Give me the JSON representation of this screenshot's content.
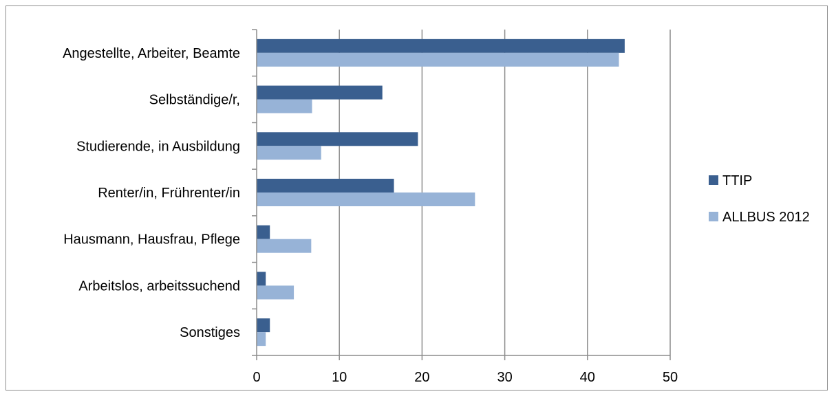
{
  "chart_data": {
    "type": "bar",
    "orientation": "horizontal",
    "title": "",
    "xlabel": "",
    "ylabel": "",
    "categories": [
      "Angestellte, Arbeiter, Beamte",
      "Selbständige/r,",
      "Studierende, in Ausbildung",
      "Renter/in, Frührenter/in",
      "Hausmann, Hausfrau, Pflege",
      "Arbeitslos, arbeitssuchend",
      "Sonstiges"
    ],
    "series": [
      {
        "name": "TTIP",
        "color": "#3a5f8f",
        "values": [
          44.5,
          15.2,
          19.5,
          16.6,
          1.6,
          1.1,
          1.6
        ]
      },
      {
        "name": "ALLBUS 2012",
        "color": "#97b3d7",
        "values": [
          43.8,
          6.7,
          7.8,
          26.4,
          6.6,
          4.5,
          1.1
        ]
      }
    ],
    "xlim": [
      0,
      50
    ],
    "xticks": [
      0,
      10,
      20,
      30,
      40,
      50
    ],
    "grid": true,
    "legend_position": "right"
  }
}
